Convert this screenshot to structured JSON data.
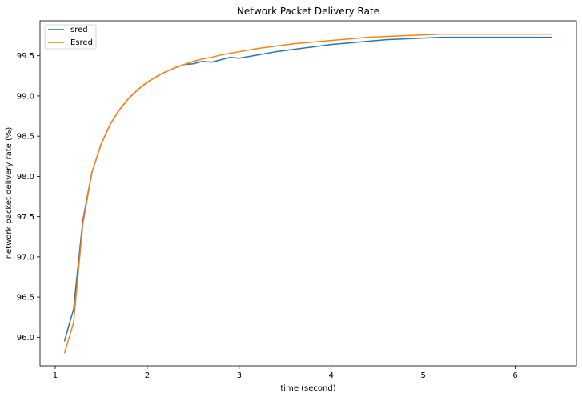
{
  "chart_data": {
    "type": "line",
    "title": "Network Packet Delivery Rate",
    "xlabel": "time (second)",
    "ylabel": "network packet delivery rate (%)",
    "xlim": [
      0.835,
      6.665
    ],
    "ylim": [
      95.645,
      99.935
    ],
    "xticks": [
      1,
      2,
      3,
      4,
      5,
      6
    ],
    "yticks": [
      96.0,
      96.5,
      97.0,
      97.5,
      98.0,
      98.5,
      99.0,
      99.5
    ],
    "ytick_labels": [
      "96.0",
      "96.5",
      "97.0",
      "97.5",
      "98.0",
      "98.5",
      "99.0",
      "99.5"
    ],
    "grid": false,
    "legend_position": "top-left",
    "series": [
      {
        "name": "sred",
        "color": "#1f77b4",
        "x": [
          1.1,
          1.2,
          1.3,
          1.4,
          1.5,
          1.6,
          1.7,
          1.8,
          1.9,
          2.0,
          2.1,
          2.2,
          2.3,
          2.4,
          2.5,
          2.6,
          2.7,
          2.8,
          2.9,
          3.0,
          3.2,
          3.4,
          3.6,
          3.8,
          4.0,
          4.2,
          4.4,
          4.6,
          4.8,
          5.0,
          5.2,
          5.4,
          5.6,
          5.8,
          6.0,
          6.2,
          6.4
        ],
        "y": [
          95.95,
          96.35,
          97.45,
          98.05,
          98.4,
          98.65,
          98.83,
          98.97,
          99.08,
          99.17,
          99.24,
          99.3,
          99.35,
          99.39,
          99.4,
          99.43,
          99.42,
          99.45,
          99.48,
          99.47,
          99.51,
          99.55,
          99.58,
          99.61,
          99.64,
          99.66,
          99.68,
          99.7,
          99.71,
          99.72,
          99.73,
          99.73,
          99.73,
          99.73,
          99.73,
          99.73,
          99.73
        ]
      },
      {
        "name": "Esred",
        "color": "#ff7f0e",
        "x": [
          1.1,
          1.2,
          1.3,
          1.4,
          1.5,
          1.6,
          1.7,
          1.8,
          1.9,
          2.0,
          2.1,
          2.2,
          2.3,
          2.4,
          2.5,
          2.6,
          2.7,
          2.8,
          2.9,
          3.0,
          3.2,
          3.4,
          3.6,
          3.8,
          4.0,
          4.2,
          4.4,
          4.6,
          4.8,
          5.0,
          5.2,
          5.4,
          5.6,
          5.8,
          6.0,
          6.2,
          6.4
        ],
        "y": [
          95.8,
          96.18,
          97.4,
          98.05,
          98.4,
          98.65,
          98.83,
          98.97,
          99.08,
          99.17,
          99.24,
          99.3,
          99.35,
          99.39,
          99.43,
          99.46,
          99.48,
          99.51,
          99.53,
          99.55,
          99.59,
          99.62,
          99.65,
          99.67,
          99.69,
          99.71,
          99.73,
          99.74,
          99.75,
          99.76,
          99.77,
          99.77,
          99.77,
          99.77,
          99.77,
          99.77,
          99.77
        ]
      }
    ]
  }
}
